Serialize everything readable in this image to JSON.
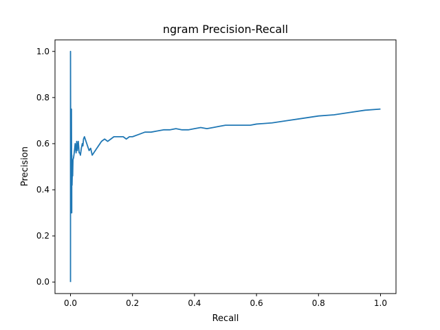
{
  "chart_data": {
    "type": "line",
    "title": "ngram Precision-Recall",
    "xlabel": "Recall",
    "ylabel": "Precision",
    "xlim": [
      -0.05,
      1.05
    ],
    "ylim": [
      -0.05,
      1.05
    ],
    "xticks": [
      0.0,
      0.2,
      0.4,
      0.6,
      0.8,
      1.0
    ],
    "yticks": [
      0.0,
      0.2,
      0.4,
      0.6,
      0.8,
      1.0
    ],
    "xtick_labels": [
      "0.0",
      "0.2",
      "0.4",
      "0.6",
      "0.8",
      "1.0"
    ],
    "ytick_labels": [
      "0.0",
      "0.2",
      "0.4",
      "0.6",
      "0.8",
      "1.0"
    ],
    "grid": false,
    "line_color": "#1f77b4",
    "series": [
      {
        "x": [
          0.0,
          0.0,
          0.001,
          0.001,
          0.002,
          0.002,
          0.003,
          0.003,
          0.004,
          0.004,
          0.005,
          0.006,
          0.007,
          0.008,
          0.01,
          0.012,
          0.015,
          0.018,
          0.02,
          0.022,
          0.025,
          0.028,
          0.03,
          0.032,
          0.035,
          0.038,
          0.04,
          0.042,
          0.045,
          0.05,
          0.055,
          0.06,
          0.065,
          0.07,
          0.075,
          0.08,
          0.085,
          0.09,
          0.1,
          0.11,
          0.12,
          0.13,
          0.14,
          0.15,
          0.16,
          0.17,
          0.18,
          0.19,
          0.2,
          0.22,
          0.24,
          0.26,
          0.28,
          0.3,
          0.32,
          0.34,
          0.36,
          0.38,
          0.4,
          0.42,
          0.44,
          0.46,
          0.48,
          0.5,
          0.52,
          0.54,
          0.56,
          0.58,
          0.6,
          0.65,
          0.7,
          0.75,
          0.8,
          0.85,
          0.9,
          0.95,
          1.0
        ],
        "y": [
          0.0,
          1.0,
          0.3,
          0.75,
          0.33,
          0.7,
          0.4,
          0.75,
          0.3,
          0.55,
          0.42,
          0.48,
          0.46,
          0.53,
          0.54,
          0.56,
          0.6,
          0.56,
          0.61,
          0.57,
          0.61,
          0.56,
          0.56,
          0.55,
          0.58,
          0.6,
          0.59,
          0.62,
          0.63,
          0.61,
          0.59,
          0.57,
          0.58,
          0.55,
          0.56,
          0.57,
          0.58,
          0.59,
          0.61,
          0.62,
          0.61,
          0.62,
          0.63,
          0.63,
          0.63,
          0.63,
          0.62,
          0.63,
          0.63,
          0.64,
          0.65,
          0.65,
          0.655,
          0.66,
          0.66,
          0.665,
          0.66,
          0.66,
          0.665,
          0.67,
          0.665,
          0.67,
          0.675,
          0.68,
          0.68,
          0.68,
          0.68,
          0.68,
          0.685,
          0.69,
          0.7,
          0.71,
          0.72,
          0.725,
          0.735,
          0.745,
          0.75
        ]
      }
    ]
  }
}
